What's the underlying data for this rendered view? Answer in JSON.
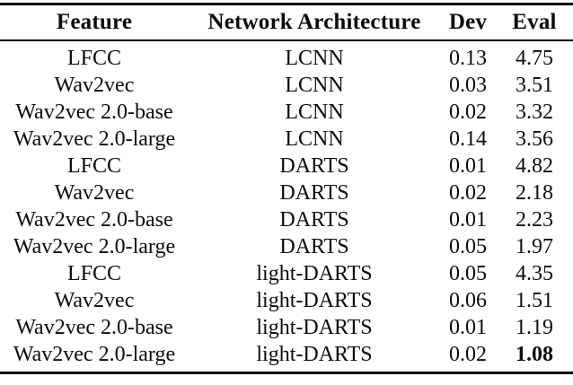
{
  "table": {
    "columns": {
      "feature": "Feature",
      "arch": "Network Architecture",
      "dev": "Dev",
      "eval": "Eval"
    },
    "rows": [
      {
        "feature": "LFCC",
        "arch": "LCNN",
        "dev": "0.13",
        "eval": "4.75"
      },
      {
        "feature": "Wav2vec",
        "arch": "LCNN",
        "dev": "0.03",
        "eval": "3.51"
      },
      {
        "feature": "Wav2vec 2.0-base",
        "arch": "LCNN",
        "dev": "0.02",
        "eval": "3.32"
      },
      {
        "feature": "Wav2vec 2.0-large",
        "arch": "LCNN",
        "dev": "0.14",
        "eval": "3.56"
      },
      {
        "feature": "LFCC",
        "arch": "DARTS",
        "dev": "0.01",
        "eval": "4.82"
      },
      {
        "feature": "Wav2vec",
        "arch": "DARTS",
        "dev": "0.02",
        "eval": "2.18"
      },
      {
        "feature": "Wav2vec 2.0-base",
        "arch": "DARTS",
        "dev": "0.01",
        "eval": "2.23"
      },
      {
        "feature": "Wav2vec 2.0-large",
        "arch": "DARTS",
        "dev": "0.05",
        "eval": "1.97"
      },
      {
        "feature": "LFCC",
        "arch": "light-DARTS",
        "dev": "0.05",
        "eval": "4.35"
      },
      {
        "feature": "Wav2vec",
        "arch": "light-DARTS",
        "dev": "0.06",
        "eval": "1.51"
      },
      {
        "feature": "Wav2vec 2.0-base",
        "arch": "light-DARTS",
        "dev": "0.01",
        "eval": "1.19"
      },
      {
        "feature": "Wav2vec 2.0-large",
        "arch": "light-DARTS",
        "dev": "0.02",
        "eval": "1.08"
      }
    ],
    "best_eval_value": "1.08"
  },
  "chart_data": {
    "type": "table",
    "title": "",
    "columns": [
      "Feature",
      "Network Architecture",
      "Dev",
      "Eval"
    ],
    "rows": [
      [
        "LFCC",
        "LCNN",
        0.13,
        4.75
      ],
      [
        "Wav2vec",
        "LCNN",
        0.03,
        3.51
      ],
      [
        "Wav2vec 2.0-base",
        "LCNN",
        0.02,
        3.32
      ],
      [
        "Wav2vec 2.0-large",
        "LCNN",
        0.14,
        3.56
      ],
      [
        "LFCC",
        "DARTS",
        0.01,
        4.82
      ],
      [
        "Wav2vec",
        "DARTS",
        0.02,
        2.18
      ],
      [
        "Wav2vec 2.0-base",
        "DARTS",
        0.01,
        2.23
      ],
      [
        "Wav2vec 2.0-large",
        "DARTS",
        0.05,
        1.97
      ],
      [
        "LFCC",
        "light-DARTS",
        0.05,
        4.35
      ],
      [
        "Wav2vec",
        "light-DARTS",
        0.06,
        1.51
      ],
      [
        "Wav2vec 2.0-base",
        "light-DARTS",
        0.01,
        1.19
      ],
      [
        "Wav2vec 2.0-large",
        "light-DARTS",
        0.02,
        1.08
      ]
    ],
    "emphasis": {
      "row": 11,
      "column": "Eval",
      "style": "bold"
    }
  }
}
